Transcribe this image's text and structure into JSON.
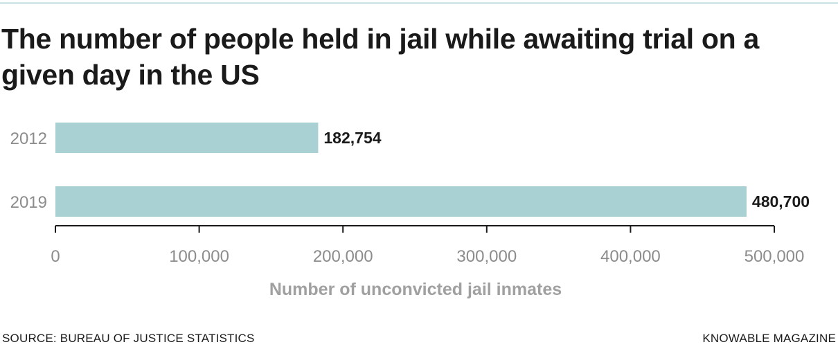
{
  "header": {
    "title": "The number of people held in jail while awaiting trial on a given day in the US"
  },
  "chart_data": {
    "type": "bar",
    "orientation": "horizontal",
    "title": "The number of people held in jail while awaiting trial on a given day in the US",
    "categories": [
      "2012",
      "2019"
    ],
    "values": [
      182754,
      480700
    ],
    "value_labels": [
      "182,754",
      "480,700"
    ],
    "xlabel": "Number of unconvicted jail inmates",
    "ylabel": "",
    "xlim": [
      0,
      500000
    ],
    "x_ticks": [
      0,
      100000,
      200000,
      300000,
      400000,
      500000
    ],
    "x_tick_labels": [
      "0",
      "100,000",
      "200,000",
      "300,000",
      "400,000",
      "500,000"
    ],
    "grid": false,
    "legend": "none",
    "colors": {
      "bar": "#a9d0d3",
      "axis": "#1a1a1a",
      "tick_label": "#8c8c8c",
      "category_label": "#8c8c8c",
      "value_label": "#1a1a1a",
      "axis_title": "#a0a0a0"
    }
  },
  "footer": {
    "source": "SOURCE: BUREAU OF JUSTICE STATISTICS",
    "credit": "KNOWABLE MAGAZINE"
  }
}
